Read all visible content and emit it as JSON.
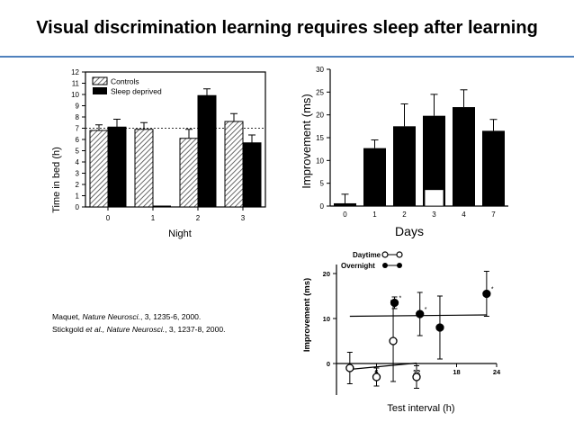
{
  "slide": {
    "title": "Visual discrimination learning requires sleep after learning",
    "rule_color": "#4f81bd",
    "references": [
      {
        "authors": "Maquet, ",
        "journal": "Nature Neurosci.",
        "rest": ", 3, 1235-6, 2000."
      },
      {
        "authors": "Stickgold ",
        "journal": "et al., Nature Neurosci.",
        "rest": ", 3, 1237-8, 2000."
      }
    ]
  },
  "chart_data": [
    {
      "type": "bar",
      "xlabel": "Night",
      "ylabel": "Time in bed (h)",
      "ylim": [
        0,
        12
      ],
      "yticks": [
        0,
        1,
        2,
        3,
        4,
        5,
        6,
        7,
        8,
        9,
        10,
        11,
        12
      ],
      "categories": [
        "0",
        "1",
        "2",
        "3"
      ],
      "reference_line": 7,
      "legend_position": "top-left",
      "series": [
        {
          "name": "Controls",
          "style": "hatched",
          "values": [
            6.8,
            6.9,
            6.1,
            7.6
          ],
          "errors": [
            0.5,
            0.6,
            0.8,
            0.7
          ]
        },
        {
          "name": "Sleep deprived",
          "style": "solid",
          "values": [
            7.1,
            0.0,
            9.9,
            5.7
          ],
          "errors": [
            0.7,
            0.0,
            0.6,
            0.7
          ]
        }
      ]
    },
    {
      "type": "bar",
      "xlabel": "Days",
      "ylabel": "Improvement (ms)",
      "ylim": [
        0,
        30
      ],
      "yticks": [
        0,
        5,
        10,
        15,
        20,
        25,
        30
      ],
      "categories": [
        "0",
        "1",
        "2",
        "3",
        "4",
        "7"
      ],
      "values": [
        0.6,
        12.7,
        17.5,
        19.8,
        21.7,
        16.5
      ],
      "errors": [
        2.0,
        1.8,
        4.9,
        4.7,
        3.8,
        2.5
      ],
      "open_bar": {
        "category": "3",
        "value": 3.6,
        "error": 3.9
      }
    },
    {
      "type": "scatter",
      "xlabel": "Test interval (h)",
      "ylabel": "Improvement (ms)",
      "xlim": [
        0,
        24
      ],
      "ylim": [
        -7,
        22
      ],
      "xticks": [
        6,
        12,
        18,
        24
      ],
      "yticks": [
        0,
        10,
        20
      ],
      "legend_position": "top",
      "series": [
        {
          "name": "Daytime",
          "marker": "open",
          "line": "connected",
          "points": [
            {
              "x": 2,
              "y": -1,
              "e": 3.5
            },
            {
              "x": 6,
              "y": -3,
              "e": 2
            },
            {
              "x": 8.5,
              "y": 5,
              "e": 9
            },
            {
              "x": 12,
              "y": -3,
              "e": 2.5
            }
          ],
          "fit": [
            {
              "x": 2,
              "y": -1.3
            },
            {
              "x": 12,
              "y": 0.1
            }
          ]
        },
        {
          "name": "Overnight",
          "marker": "filled",
          "line": "connected",
          "points": [
            {
              "x": 8.7,
              "y": 13.5,
              "e": 1.3,
              "star": "*"
            },
            {
              "x": 12.5,
              "y": 11,
              "e": 4.8,
              "star": "*"
            },
            {
              "x": 15.5,
              "y": 8,
              "e": 7
            },
            {
              "x": 22.5,
              "y": 15.5,
              "e": 5,
              "star": "*"
            }
          ],
          "fit": [
            {
              "x": 2,
              "y": 10.5
            },
            {
              "x": 22.5,
              "y": 10.8
            }
          ]
        }
      ]
    }
  ]
}
